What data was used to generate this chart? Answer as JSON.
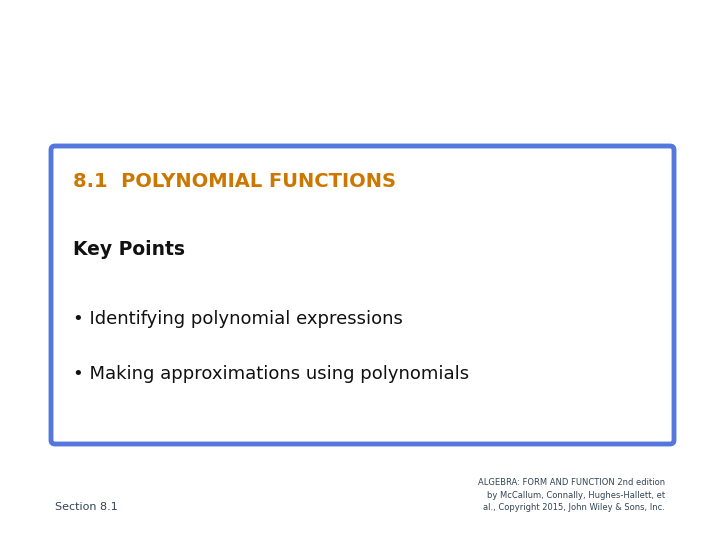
{
  "title": "8.1  POLYNOMIAL FUNCTIONS",
  "title_color": "#CC7700",
  "key_points_label": "Key Points",
  "bullet_points": [
    "Identifying polynomial expressions",
    "Making approximations using polynomials"
  ],
  "box_edge_color": "#5577DD",
  "box_face_color": "#FFFFFF",
  "bg_color": "#FFFFFF",
  "text_color": "#111111",
  "section_label": "Section 8.1",
  "footer_line1": "ALGEBRA: FORM AND FUNCTION 2nd edition",
  "footer_line2": "by McCallum, Connally, Hughes-Hallett, et",
  "footer_line3": "al., Copyright 2015, John Wiley & Sons, Inc.",
  "footer_color": "#334455"
}
